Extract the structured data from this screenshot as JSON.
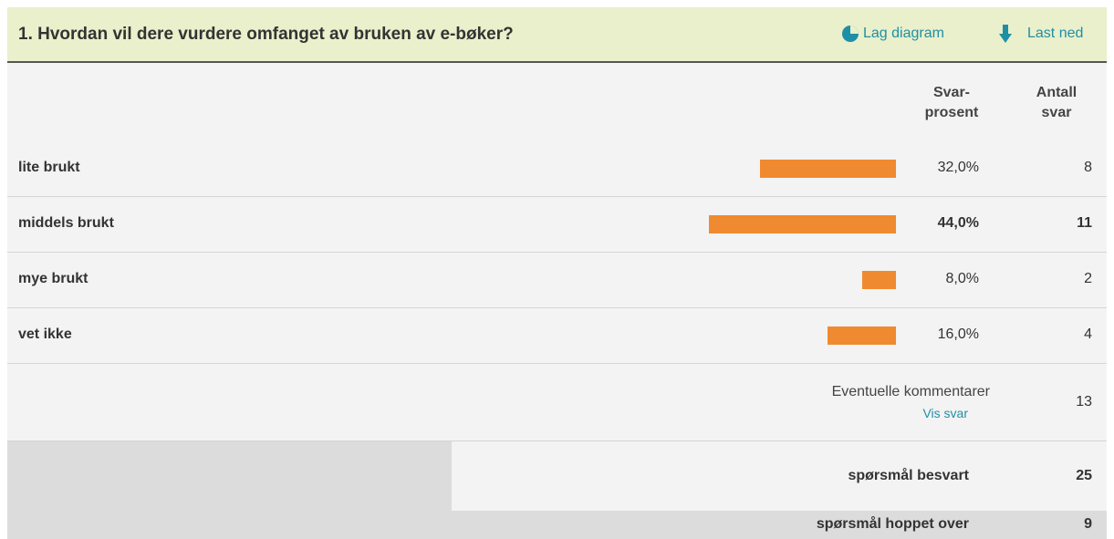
{
  "header": {
    "title": "1. Hvordan vil dere vurdere omfanget av bruken av e-bøker?",
    "chart_link": "Lag diagram",
    "download_link": "Last ned"
  },
  "table": {
    "columns": [
      "Svar-\nprosent",
      "Antall\nsvar"
    ],
    "rows": [
      {
        "label": "lite brukt",
        "percent": 32.0,
        "percent_label": "32,0%",
        "count": 8
      },
      {
        "label": "middels brukt",
        "percent": 44.0,
        "percent_label": "44,0%",
        "count": 11
      },
      {
        "label": "mye brukt",
        "percent": 8.0,
        "percent_label": "8,0%",
        "count": 2
      },
      {
        "label": "vet ikke",
        "percent": 16.0,
        "percent_label": "16,0%",
        "count": 4
      }
    ],
    "comments": {
      "label": "Eventuelle kommentarer",
      "link": "Vis svar",
      "count": 13
    },
    "answered": {
      "label": "spørsmål besvart",
      "count": 25
    },
    "skipped": {
      "label": "spørsmål hoppet over",
      "count": 9
    }
  }
}
